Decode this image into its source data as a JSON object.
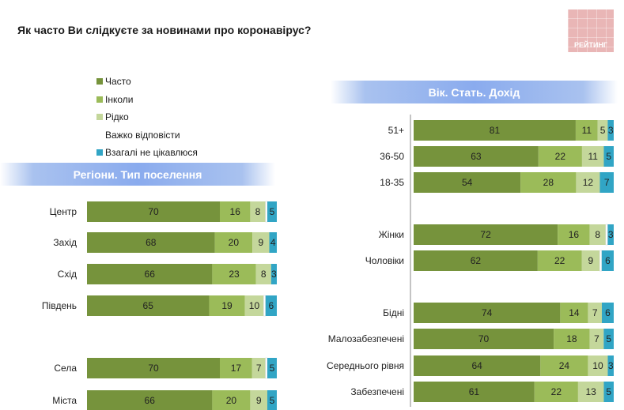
{
  "title": "Як часто Ви слідкуєте за новинами про коронавірус?",
  "logo": {
    "text": "РЕЙТИНГ",
    "color": "#e9b6b6"
  },
  "legend": [
    {
      "label": "Часто",
      "color": "#76933c"
    },
    {
      "label": "Інколи",
      "color": "#9bbb59"
    },
    {
      "label": "Рідко",
      "color": "#c4d79b"
    },
    {
      "label": "Важко відповісти",
      "color": "#ffffff"
    },
    {
      "label": "Взагалі не цікавлюся",
      "color": "#31a5c5"
    }
  ],
  "banners": {
    "regions": "Регіони. Тип поселення",
    "demographics": "Вік. Стать. Дохід"
  },
  "chart_data": [
    {
      "type": "bar",
      "orientation": "horizontal",
      "stacked": true,
      "title": "Регіони. Тип поселення",
      "categories": [
        "Центр",
        "Захід",
        "Схід",
        "Південь",
        "Села",
        "Міста"
      ],
      "series": [
        {
          "name": "Часто",
          "values": [
            70,
            68,
            66,
            65,
            70,
            66
          ]
        },
        {
          "name": "Інколи",
          "values": [
            16,
            20,
            23,
            19,
            17,
            20
          ]
        },
        {
          "name": "Рідко",
          "values": [
            8,
            9,
            8,
            10,
            7,
            9
          ]
        },
        {
          "name": "Важко відповісти",
          "values": [
            1,
            0,
            0,
            1,
            1,
            0
          ]
        },
        {
          "name": "Взагалі не цікавлюся",
          "values": [
            5,
            4,
            3,
            6,
            5,
            5
          ]
        }
      ],
      "xlim": [
        0,
        100
      ],
      "grid": false,
      "legend_position": "top-left"
    },
    {
      "type": "bar",
      "orientation": "horizontal",
      "stacked": true,
      "title": "Вік. Стать. Дохід",
      "categories": [
        "51+",
        "36-50",
        "18-35",
        "Жінки",
        "Чоловіки",
        "Бідні",
        "Малозабезпечені",
        "Середнього рівня",
        "Забезпечені"
      ],
      "series": [
        {
          "name": "Часто",
          "values": [
            81,
            63,
            54,
            72,
            62,
            74,
            70,
            64,
            61
          ]
        },
        {
          "name": "Інколи",
          "values": [
            11,
            22,
            28,
            16,
            22,
            14,
            18,
            24,
            22
          ]
        },
        {
          "name": "Рідко",
          "values": [
            5,
            11,
            12,
            8,
            9,
            7,
            7,
            10,
            13
          ]
        },
        {
          "name": "Важко відповісти",
          "values": [
            0,
            0,
            0,
            1,
            1,
            0,
            0,
            0,
            0
          ]
        },
        {
          "name": "Взагалі не цікавлюся",
          "values": [
            3,
            5,
            7,
            3,
            6,
            6,
            5,
            3,
            5
          ]
        }
      ],
      "xlim": [
        0,
        100
      ],
      "grid": false
    }
  ]
}
